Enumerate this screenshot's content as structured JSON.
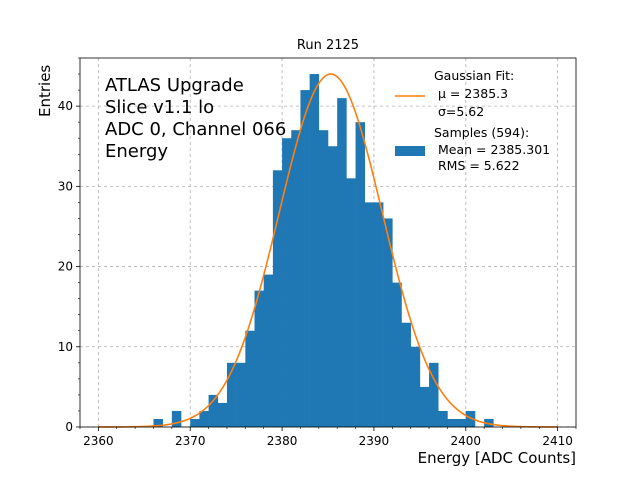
{
  "chart_data": {
    "type": "histogram",
    "title": "Run 2125",
    "xlabel": "Energy [ADC Counts]",
    "ylabel": "Entries",
    "xlim": [
      2358,
      2412
    ],
    "ylim": [
      0,
      46
    ],
    "xticks": [
      2360,
      2370,
      2380,
      2390,
      2400,
      2410
    ],
    "yticks": [
      0,
      10,
      20,
      30,
      40
    ],
    "grid": true,
    "annotation": [
      "ATLAS Upgrade",
      "Slice v1.1 lo",
      "ADC 0, Channel 066",
      "Energy"
    ],
    "bin_width": 1,
    "bins": [
      {
        "x": 2366,
        "count": 1
      },
      {
        "x": 2368,
        "count": 2
      },
      {
        "x": 2370,
        "count": 1
      },
      {
        "x": 2371,
        "count": 2
      },
      {
        "x": 2372,
        "count": 4
      },
      {
        "x": 2373,
        "count": 3
      },
      {
        "x": 2374,
        "count": 8
      },
      {
        "x": 2375,
        "count": 8
      },
      {
        "x": 2376,
        "count": 12
      },
      {
        "x": 2377,
        "count": 17
      },
      {
        "x": 2378,
        "count": 19
      },
      {
        "x": 2379,
        "count": 32
      },
      {
        "x": 2380,
        "count": 36
      },
      {
        "x": 2381,
        "count": 37
      },
      {
        "x": 2382,
        "count": 42
      },
      {
        "x": 2383,
        "count": 44
      },
      {
        "x": 2384,
        "count": 37
      },
      {
        "x": 2385,
        "count": 35
      },
      {
        "x": 2386,
        "count": 41
      },
      {
        "x": 2387,
        "count": 31
      },
      {
        "x": 2388,
        "count": 38
      },
      {
        "x": 2389,
        "count": 28
      },
      {
        "x": 2390,
        "count": 28
      },
      {
        "x": 2391,
        "count": 26
      },
      {
        "x": 2392,
        "count": 18
      },
      {
        "x": 2393,
        "count": 13
      },
      {
        "x": 2394,
        "count": 10
      },
      {
        "x": 2395,
        "count": 5
      },
      {
        "x": 2396,
        "count": 8
      },
      {
        "x": 2397,
        "count": 2
      },
      {
        "x": 2398,
        "count": 1
      },
      {
        "x": 2399,
        "count": 1
      },
      {
        "x": 2400,
        "count": 2
      },
      {
        "x": 2402,
        "count": 1
      }
    ],
    "fit": {
      "type": "gaussian",
      "mu": 2385.3,
      "sigma": 5.62,
      "amplitude": 44,
      "x_range": [
        2360,
        2410
      ]
    },
    "legend": {
      "position": "top-right",
      "fit_entry": [
        "Gaussian Fit:",
        "$\\mu$ = 2385.3",
        "$\\sigma$=5.62"
      ],
      "fit_lines": [
        "Gaussian Fit:",
        " μ = 2385.3",
        " σ=5.62"
      ],
      "samples_lines": [
        "Samples (594):",
        " Mean = 2385.301",
        " RMS = 5.622"
      ]
    },
    "colors": {
      "bars": "#1f77b4",
      "fit_line": "#ff7f0e",
      "grid": "#b0b0b0"
    }
  }
}
